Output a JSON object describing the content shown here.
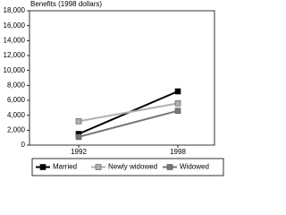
{
  "chart_data": {
    "type": "line",
    "y_axis_label": "Benefits (1998 dollars)",
    "categories": [
      "1992",
      "1998"
    ],
    "series": [
      {
        "name": "Married",
        "color": "#000000",
        "values": [
          1500,
          7200
        ]
      },
      {
        "name": "Newly widowed",
        "color": "#b0b0b0",
        "values": [
          3200,
          5600
        ]
      },
      {
        "name": "Widowed",
        "color": "#777777",
        "values": [
          1100,
          4600
        ]
      }
    ],
    "ylim": [
      0,
      18000
    ],
    "yticks": [
      0,
      {
        "value": 2000,
        "label": "2,000"
      },
      {
        "value": 4000,
        "label": "4,000"
      },
      {
        "value": 6000,
        "label": "6,000"
      },
      {
        "value": 8000,
        "label": "8,000"
      },
      {
        "value": 10000,
        "label": "10,000"
      },
      {
        "value": 12000,
        "label": "12,000"
      },
      {
        "value": 14000,
        "label": "14,000"
      },
      {
        "value": 16000,
        "label": "16,000"
      },
      {
        "value": 18000,
        "label": "18,000"
      }
    ],
    "legend_position": "bottom"
  }
}
